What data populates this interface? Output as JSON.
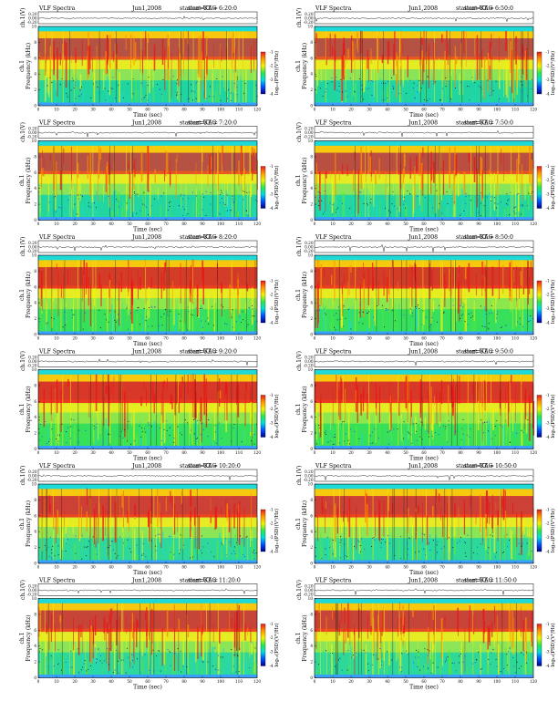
{
  "chart_data": {
    "type": "heatmap",
    "title_prefix": "VLF Spectra",
    "date": "Jun1,2008",
    "station": "station=KAG",
    "start_label": "start  UT  =",
    "xlabel": "Time (sec)",
    "ylabel_freq": "Frequency (kHz)",
    "ylabel_ch": "ch.1",
    "ylabel_trace": "ch.1(V)",
    "colorbar_label": "log₁₀(PSD)(V²/Hz)",
    "colorbar_ticks": [
      "-4",
      "-3",
      "-2",
      "-1"
    ],
    "xlim": [
      0,
      120
    ],
    "xticks": [
      0,
      10,
      20,
      30,
      40,
      50,
      60,
      70,
      80,
      90,
      100,
      110,
      120
    ],
    "ylim_freq": [
      0,
      10
    ],
    "yticks_freq": [
      0,
      2,
      4,
      6,
      8,
      10
    ],
    "trace_ticks": [
      "0.20",
      "0.00",
      "-0.20"
    ],
    "colormap": [
      "#00008c",
      "#0050ff",
      "#00dcdc",
      "#2ee64a",
      "#f2f200",
      "#ff9a00",
      "#ee1a1a"
    ],
    "panels": [
      {
        "start_ut": "6:20:0",
        "base_color": "#21d5a0",
        "band_color": "#ee2020",
        "band_intensity": 0.55
      },
      {
        "start_ut": "6:50:0",
        "base_color": "#21d5a0",
        "band_color": "#ee2020",
        "band_intensity": 0.55
      },
      {
        "start_ut": "7:20:0",
        "base_color": "#22d6a2",
        "band_color": "#ee2020",
        "band_intensity": 0.55
      },
      {
        "start_ut": "7:50:0",
        "base_color": "#22d6a2",
        "band_color": "#ee2020",
        "band_intensity": 0.6
      },
      {
        "start_ut": "8:20:0",
        "base_color": "#37e05a",
        "band_color": "#ee2020",
        "band_intensity": 0.8
      },
      {
        "start_ut": "8:50:0",
        "base_color": "#37e05a",
        "band_color": "#ee2020",
        "band_intensity": 0.8
      },
      {
        "start_ut": "9:20:0",
        "base_color": "#37e05a",
        "band_color": "#ee2020",
        "band_intensity": 0.85
      },
      {
        "start_ut": "9:50:0",
        "base_color": "#37e05a",
        "band_color": "#ee2020",
        "band_intensity": 0.85
      },
      {
        "start_ut": "10:20:0",
        "base_color": "#2ed898",
        "band_color": "#ee2020",
        "band_intensity": 0.75
      },
      {
        "start_ut": "10:50:0",
        "base_color": "#2ed898",
        "band_color": "#ee2020",
        "band_intensity": 0.75
      },
      {
        "start_ut": "11:20:0",
        "base_color": "#2ed898",
        "band_color": "#ee2020",
        "band_intensity": 0.7
      },
      {
        "start_ut": "11:50:0",
        "base_color": "#2ed898",
        "band_color": "#ee2020",
        "band_intensity": 0.7
      }
    ]
  }
}
